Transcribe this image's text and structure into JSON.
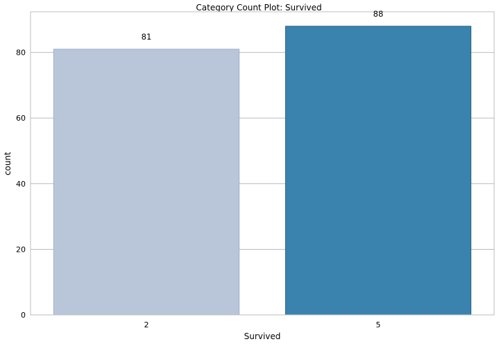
{
  "chart_data": {
    "type": "bar",
    "title": "Category Count Plot: Survived",
    "xlabel": "Survived",
    "ylabel": "count",
    "categories": [
      "2",
      "5"
    ],
    "values": [
      81,
      88
    ],
    "data_labels": [
      "81",
      "88"
    ],
    "colors": [
      "#b9c6da",
      "#3a83ae"
    ],
    "edge_colors": [
      "#9db0cc",
      "#2a6386"
    ],
    "ylim": [
      0,
      92.4
    ],
    "yticks": [
      0,
      20,
      40,
      60,
      80
    ],
    "ytick_labels": [
      "0",
      "20",
      "40",
      "60",
      "80"
    ],
    "grid": "horizontal",
    "legend": "none"
  }
}
